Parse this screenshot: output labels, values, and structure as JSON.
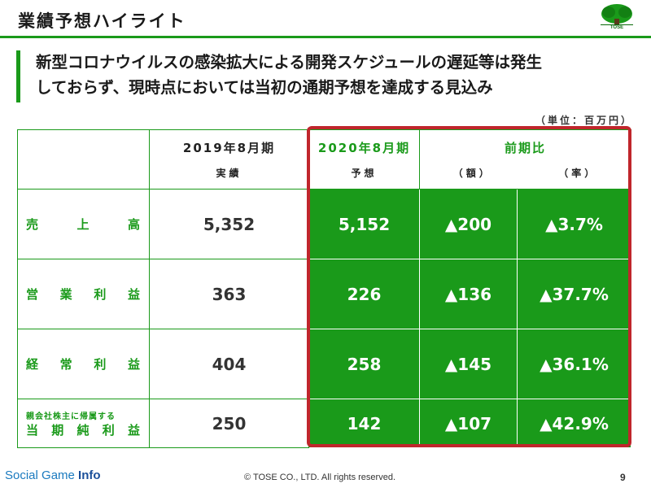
{
  "header": {
    "title": "業績予想ハイライト",
    "logo_text": "TOSE",
    "brand_color": "#1a9a1a",
    "frame_color": "#c0262c"
  },
  "headline": {
    "line1": "新型コロナウイルスの感染拡大による開発スケジュールの遅延等は発生",
    "line2": "しておらず、現時点においては当初の通期予想を達成する見込み"
  },
  "unit_note": "（単位：百万円）",
  "table": {
    "prev_period": "2019年8月期",
    "prev_sub": "実績",
    "fc_period": "2020年8月期",
    "fc_sub": "予想",
    "compare": "前期比",
    "amt_sub": "（額）",
    "rate_sub": "（率）",
    "rows": [
      {
        "label_chars": [
          "売",
          "上",
          "高"
        ],
        "prev": "5,352",
        "forecast": "5,152",
        "diff": "▲200",
        "rate": "▲3.7%"
      },
      {
        "label_chars": [
          "営",
          "業",
          "利",
          "益"
        ],
        "prev": "363",
        "forecast": "226",
        "diff": "▲136",
        "rate": "▲37.7%"
      },
      {
        "label_chars": [
          "経",
          "常",
          "利",
          "益"
        ],
        "prev": "404",
        "forecast": "258",
        "diff": "▲145",
        "rate": "▲36.1%"
      },
      {
        "label_small": "親会社株主に帰属する",
        "label_chars": [
          "当",
          "期",
          "純",
          "利",
          "益"
        ],
        "prev": "250",
        "forecast": "142",
        "diff": "▲107",
        "rate": "▲42.9%"
      }
    ]
  },
  "footer": {
    "brand_a": "Social Game ",
    "brand_b": "Info",
    "copyright": "© TOSE CO., LTD. All rights reserved.",
    "page": "9"
  }
}
